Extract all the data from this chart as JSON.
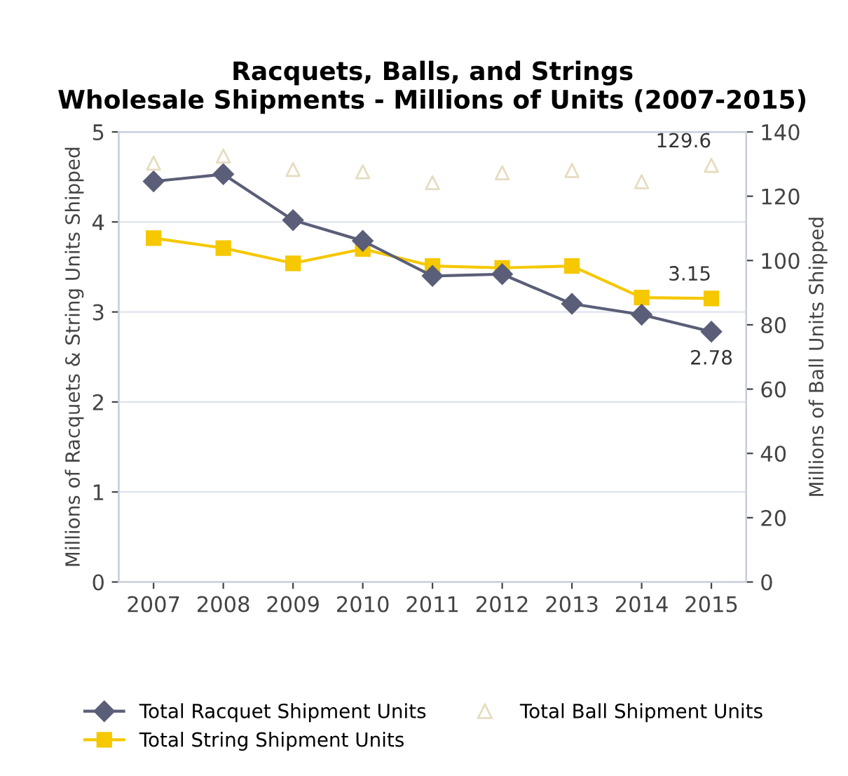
{
  "chart_data": {
    "type": "line",
    "title": "Racquets, Balls, and Strings\nWholesale Shipments - Millions of Units (2007-2015)",
    "ylabel": "Millions of Racquets & String Units Shipped",
    "y2label": "Millions of Ball Units Shipped",
    "categories": [
      "2007",
      "2008",
      "2009",
      "2010",
      "2011",
      "2012",
      "2013",
      "2014",
      "2015"
    ],
    "series": [
      {
        "name": "Total Racquet Shipment Units",
        "color": "#5b5e78",
        "marker": "diamond",
        "values": [
          4.45,
          4.53,
          4.02,
          3.79,
          3.4,
          3.42,
          3.09,
          2.97,
          2.78
        ],
        "value_labels": [
          null,
          null,
          null,
          null,
          null,
          null,
          null,
          null,
          "2.78"
        ]
      },
      {
        "name": "Total String Shipment Units",
        "color": "#f5c800",
        "marker": "square",
        "values": [
          3.82,
          3.71,
          3.54,
          3.7,
          3.51,
          3.49,
          3.51,
          3.16,
          3.15
        ],
        "value_labels": [
          null,
          null,
          null,
          null,
          null,
          null,
          null,
          null,
          "3.15"
        ]
      },
      {
        "name": "Total Ball Shipment Units",
        "type": "scatter",
        "axis": "y2",
        "color": "#e6dcc0",
        "marker": "triangle",
        "values": [
          130.3,
          132.5,
          128.3,
          127.6,
          124.2,
          127.3,
          128.0,
          124.5,
          129.6
        ],
        "value_labels": [
          null,
          null,
          null,
          null,
          null,
          null,
          null,
          null,
          "129.6"
        ]
      }
    ],
    "ylim": [
      0,
      5
    ],
    "yticks": [
      0,
      1,
      2,
      3,
      4,
      5
    ],
    "y2lim": [
      0,
      140
    ],
    "y2ticks": [
      0,
      20,
      40,
      60,
      80,
      100,
      120,
      140
    ],
    "grid": "y",
    "legend": "bottom"
  }
}
